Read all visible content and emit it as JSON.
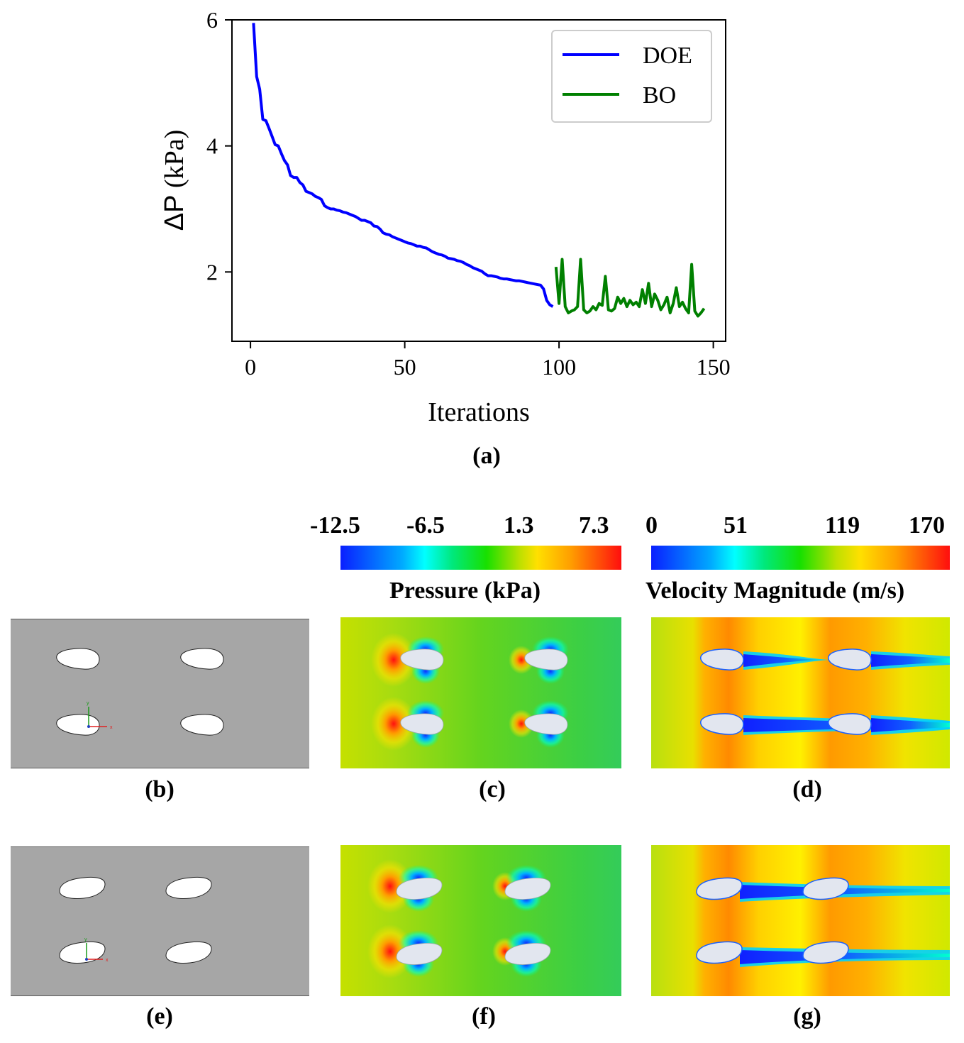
{
  "chart_data": {
    "type": "line",
    "title": "",
    "xlabel": "Iterations",
    "ylabel": "ΔP (kPa)",
    "xlim": [
      -6,
      154
    ],
    "ylim": [
      0.9,
      6.0
    ],
    "xticks": [
      0,
      50,
      100,
      150
    ],
    "yticks": [
      2,
      4,
      6
    ],
    "legend_position": "top-right",
    "series": [
      {
        "name": "DOE",
        "color": "#0000ff",
        "x": [
          1,
          2,
          3,
          4,
          5,
          6,
          7,
          8,
          9,
          10,
          11,
          12,
          13,
          14,
          15,
          16,
          17,
          18,
          19,
          20,
          21,
          22,
          23,
          24,
          25,
          26,
          27,
          28,
          29,
          30,
          31,
          32,
          33,
          34,
          35,
          36,
          37,
          38,
          39,
          40,
          41,
          42,
          43,
          44,
          45,
          46,
          47,
          48,
          49,
          50,
          51,
          52,
          53,
          54,
          55,
          56,
          57,
          58,
          59,
          60,
          61,
          62,
          63,
          64,
          65,
          66,
          67,
          68,
          69,
          70,
          71,
          72,
          73,
          74,
          75,
          76,
          77,
          78,
          79,
          80,
          81,
          82,
          83,
          84,
          85,
          86,
          87,
          88,
          89,
          90,
          91,
          92,
          93,
          94,
          95,
          96,
          97,
          98
        ],
        "values": [
          5.95,
          5.1,
          4.9,
          4.42,
          4.4,
          4.28,
          4.15,
          4.02,
          4.0,
          3.88,
          3.77,
          3.7,
          3.53,
          3.5,
          3.5,
          3.42,
          3.38,
          3.28,
          3.26,
          3.24,
          3.2,
          3.18,
          3.15,
          3.05,
          3.02,
          3.0,
          3.0,
          2.98,
          2.97,
          2.95,
          2.94,
          2.92,
          2.9,
          2.88,
          2.85,
          2.82,
          2.82,
          2.8,
          2.78,
          2.73,
          2.72,
          2.68,
          2.62,
          2.6,
          2.59,
          2.56,
          2.54,
          2.52,
          2.5,
          2.48,
          2.46,
          2.45,
          2.43,
          2.41,
          2.41,
          2.39,
          2.38,
          2.35,
          2.32,
          2.3,
          2.28,
          2.27,
          2.25,
          2.22,
          2.21,
          2.2,
          2.18,
          2.17,
          2.15,
          2.12,
          2.1,
          2.07,
          2.05,
          2.03,
          2.01,
          1.97,
          1.94,
          1.94,
          1.93,
          1.92,
          1.9,
          1.89,
          1.89,
          1.88,
          1.87,
          1.86,
          1.86,
          1.85,
          1.84,
          1.83,
          1.82,
          1.81,
          1.8,
          1.79,
          1.73,
          1.55,
          1.48,
          1.45
        ]
      },
      {
        "name": "BO",
        "color": "#008000",
        "x": [
          99,
          100,
          101,
          102,
          103,
          104,
          105,
          106,
          107,
          108,
          109,
          110,
          111,
          112,
          113,
          114,
          115,
          116,
          117,
          118,
          119,
          120,
          121,
          122,
          123,
          124,
          125,
          126,
          127,
          128,
          129,
          130,
          131,
          132,
          133,
          134,
          135,
          136,
          137,
          138,
          139,
          140,
          141,
          142,
          143,
          144,
          145,
          146,
          147
        ],
        "values": [
          2.08,
          1.5,
          2.2,
          1.45,
          1.35,
          1.38,
          1.4,
          1.45,
          2.2,
          1.4,
          1.35,
          1.38,
          1.45,
          1.4,
          1.5,
          1.47,
          1.93,
          1.4,
          1.38,
          1.42,
          1.6,
          1.5,
          1.58,
          1.45,
          1.55,
          1.48,
          1.52,
          1.45,
          1.72,
          1.5,
          1.82,
          1.45,
          1.65,
          1.55,
          1.4,
          1.48,
          1.6,
          1.35,
          1.5,
          1.75,
          1.45,
          1.52,
          1.42,
          1.35,
          2.12,
          1.38,
          1.3,
          1.35,
          1.42
        ]
      }
    ]
  },
  "captions": {
    "a": "(a)",
    "b": "(b)",
    "c": "(c)",
    "d": "(d)",
    "e": "(e)",
    "f": "(f)",
    "g": "(g)"
  },
  "colorbars": {
    "pressure": {
      "title": "Pressure (kPa)",
      "ticks": [
        "-12.5",
        "-6.5",
        "1.3",
        "7.3"
      ]
    },
    "velocity": {
      "title": "Velocity Magnitude (m/s)",
      "ticks": [
        "0",
        "51",
        "119",
        "170"
      ]
    }
  },
  "colors": {
    "geometry_background": "#a6a6a6",
    "foil_fill": "#ffffff",
    "field_foil_fill": "#e2e6ef",
    "pressure_base": "#6fd31c",
    "velocity_base": "#d8e819"
  },
  "axis_triad": {
    "x_label": "x",
    "y_label": "y"
  }
}
